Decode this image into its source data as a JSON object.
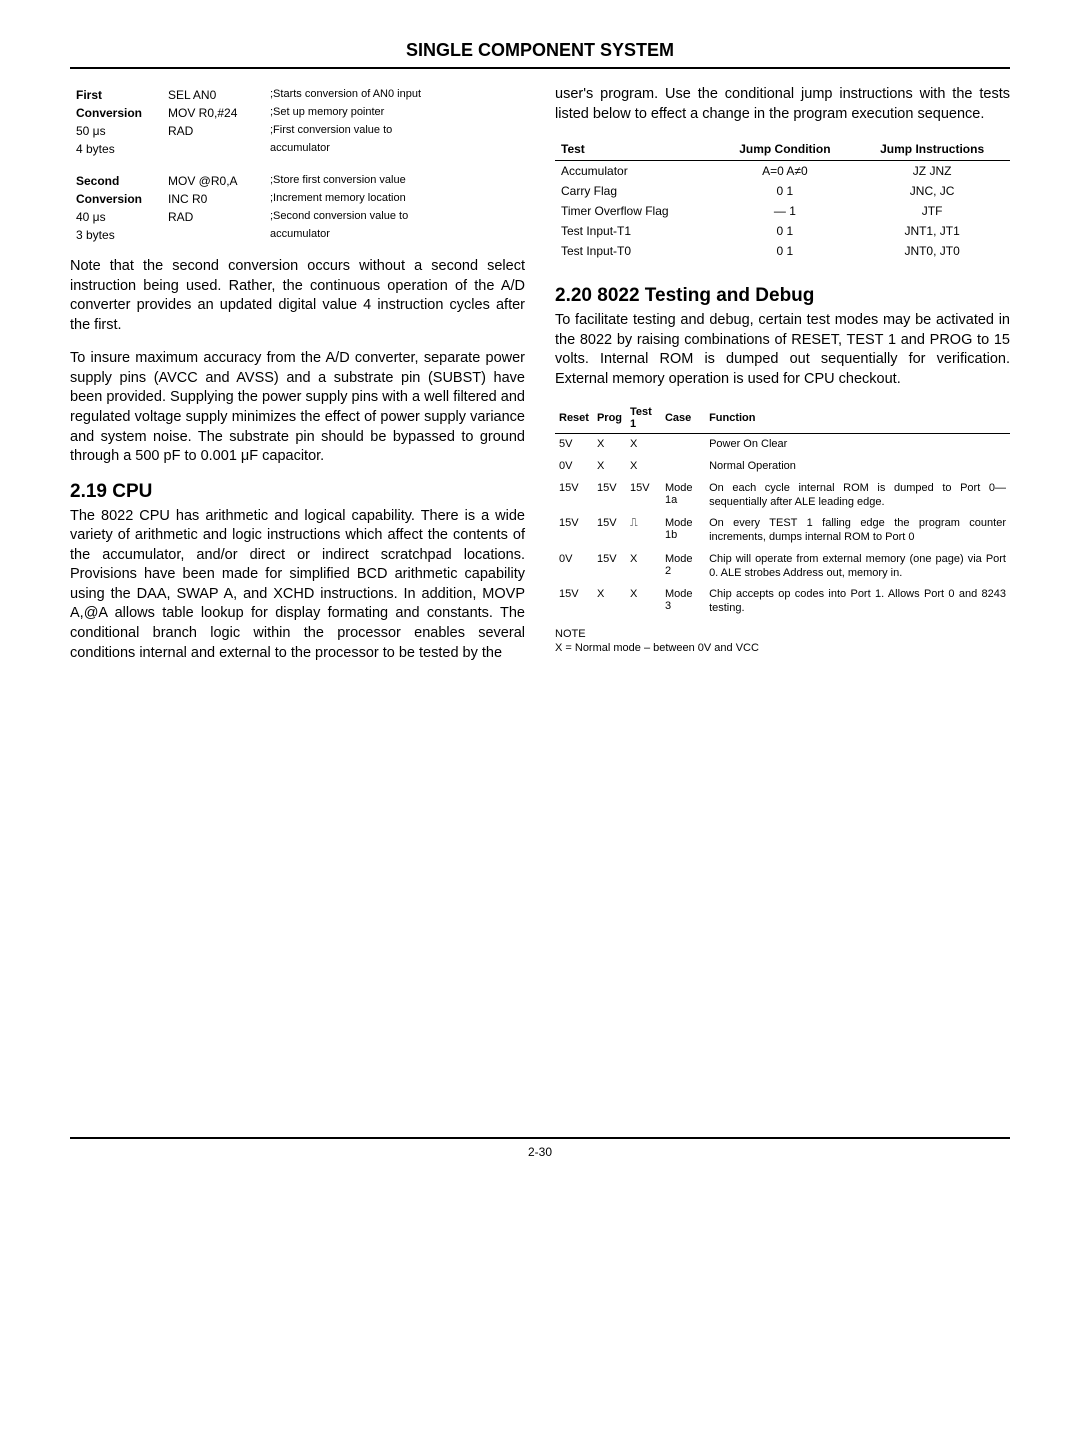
{
  "header": "SINGLE COMPONENT SYSTEM",
  "left": {
    "code1": {
      "group_label": "First Conversion",
      "group_meta": "50 μs 4 bytes",
      "rows": [
        {
          "label": "First",
          "instr": "SEL AN0",
          "comment": ";Starts conversion of AN0 input"
        },
        {
          "label": "Conversion",
          "instr": "MOV R0,#24",
          "comment": ";Set up memory pointer"
        },
        {
          "label": "50 μs",
          "instr": "RAD",
          "comment": ";First conversion value to"
        },
        {
          "label": "4 bytes",
          "instr": "",
          "comment": "  accumulator"
        }
      ]
    },
    "code2": {
      "rows": [
        {
          "label": "Second",
          "instr": "MOV @R0,A",
          "comment": ";Store first conversion value"
        },
        {
          "label": "Conversion",
          "instr": "INC R0",
          "comment": ";Increment memory location"
        },
        {
          "label": "40 μs",
          "instr": "RAD",
          "comment": ";Second conversion value to"
        },
        {
          "label": "3 bytes",
          "instr": "",
          "comment": "  accumulator"
        }
      ]
    },
    "p1": "Note that the second conversion occurs without a second select instruction being used. Rather, the continuous operation of the A/D converter provides an updated digital value 4 instruction cycles after the first.",
    "p2": "To insure maximum accuracy from the A/D converter, separate power supply pins (AVCC and AVSS) and a substrate pin (SUBST) have been provided. Supplying the power supply pins with a well filtered and regulated voltage supply minimizes the effect of power supply variance and system noise. The substrate pin should be bypassed to ground through a 500 pF to 0.001 μF capacitor.",
    "h1": "2.19 CPU",
    "p3": "The 8022 CPU has arithmetic and logical capability. There is a wide variety of arithmetic and logic instructions which affect the contents of the accumulator, and/or direct or indirect scratchpad locations. Provisions have been made for simplified BCD arithmetic capability using the DAA, SWAP A, and XCHD instructions. In addition, MOVP A,@A allows table lookup for display formating and constants. The conditional branch logic within the processor enables several conditions internal and external to the processor to be tested by the"
  },
  "right": {
    "p1": "user's program. Use the conditional jump instructions with the tests listed below to effect a change in the program execution sequence.",
    "jump_table": {
      "headers": [
        "Test",
        "Jump Condition",
        "Jump Instructions"
      ],
      "rows": [
        {
          "test": "Accumulator",
          "cond": "A=0   A≠0",
          "instr": "JZ JNZ"
        },
        {
          "test": "Carry Flag",
          "cond": "0   1",
          "instr": "JNC, JC"
        },
        {
          "test": "Timer Overflow Flag",
          "cond": "—  1",
          "instr": "JTF"
        },
        {
          "test": "Test Input-T1",
          "cond": "0   1",
          "instr": "JNT1, JT1"
        },
        {
          "test": "Test Input-T0",
          "cond": "0   1",
          "instr": "JNT0, JT0"
        }
      ]
    },
    "h1": "2.20 8022 Testing and Debug",
    "p2": "To facilitate testing and debug, certain test modes may be activated in the 8022 by raising combinations of RESET, TEST 1 and PROG to 15 volts. Internal ROM is dumped out sequentially for verification. External memory operation is used for CPU checkout.",
    "mode_table": {
      "headers": [
        "Reset",
        "Prog",
        "Test 1",
        "Case",
        "Function"
      ],
      "rows": [
        {
          "reset": "5V",
          "prog": "X",
          "test1": "X",
          "case": "",
          "func": "Power On Clear"
        },
        {
          "reset": "0V",
          "prog": "X",
          "test1": "X",
          "case": "",
          "func": "Normal Operation"
        },
        {
          "reset": "15V",
          "prog": "15V",
          "test1": "15V",
          "case": "Mode 1a",
          "func": "On each cycle internal ROM is dumped to Port 0—sequentially after ALE leading edge."
        },
        {
          "reset": "15V",
          "prog": "15V",
          "test1": "⎍",
          "case": "Mode 1b",
          "func": "On every TEST 1 falling edge the program counter increments, dumps internal ROM to Port 0"
        },
        {
          "reset": "0V",
          "prog": "15V",
          "test1": "X",
          "case": "Mode 2",
          "func": "Chip will operate from external memory (one page) via Port 0. ALE strobes Address out, memory in."
        },
        {
          "reset": "15V",
          "prog": "X",
          "test1": "X",
          "case": "Mode 3",
          "func": "Chip accepts op codes into Port 1. Allows Port 0 and 8243 testing."
        }
      ]
    },
    "note_label": "NOTE",
    "note_text": "X = Normal mode – between 0V and VCC"
  },
  "footer": "2-30"
}
